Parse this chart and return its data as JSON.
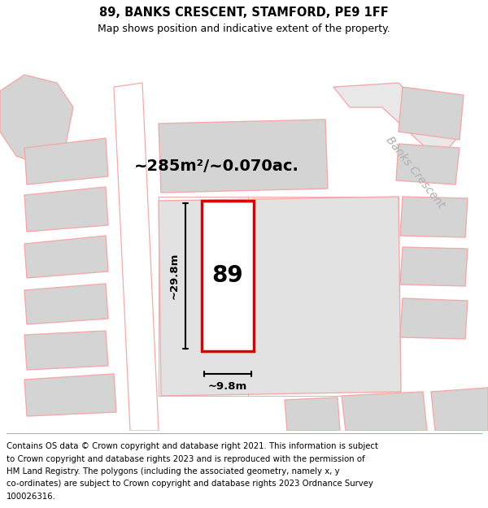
{
  "title": "89, BANKS CRESCENT, STAMFORD, PE9 1FF",
  "subtitle": "Map shows position and indicative extent of the property.",
  "area_label": "~285m²/~0.070ac.",
  "width_label": "~9.8m",
  "height_label": "~29.8m",
  "property_number": "89",
  "footer_lines": [
    "Contains OS data © Crown copyright and database right 2021. This information is subject",
    "to Crown copyright and database rights 2023 and is reproduced with the permission of",
    "HM Land Registry. The polygons (including the associated geometry, namely x, y",
    "co-ordinates) are subject to Crown copyright and database rights 2023 Ordnance Survey",
    "100026316."
  ],
  "bg_color": "#eeeeee",
  "plot_color": "#ffffff",
  "plot_border_color": "#dd0000",
  "neighbor_fill": "#d4d4d4",
  "neighbor_stroke": "#f4aaaa",
  "road_label_color": "#b0b0b0",
  "road_label": "Banks Crescent"
}
